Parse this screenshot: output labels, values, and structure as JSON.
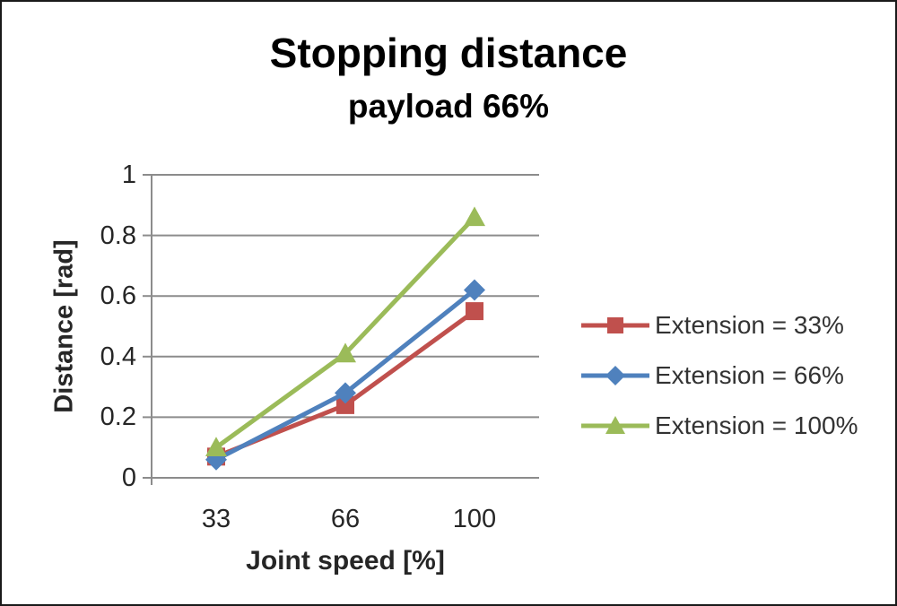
{
  "window": {
    "background": "#ffffff",
    "border_color": "#1a1a1a"
  },
  "chart_data": {
    "type": "line",
    "title": "Stopping distance",
    "subtitle": "payload 66%",
    "xlabel": "Joint speed [%]",
    "ylabel": "Distance [rad]",
    "categories": [
      "33",
      "66",
      "100"
    ],
    "y_ticks": [
      "0",
      "0.2",
      "0.4",
      "0.6",
      "0.8",
      "1"
    ],
    "ylim": [
      0,
      1
    ],
    "grid": true,
    "legend_position": "right",
    "series": [
      {
        "name": "Extension = 33%",
        "color": "#C0504D",
        "marker": "square",
        "values": [
          0.07,
          0.24,
          0.55
        ]
      },
      {
        "name": "Extension = 66%",
        "color": "#4F81BD",
        "marker": "diamond",
        "values": [
          0.06,
          0.28,
          0.62
        ]
      },
      {
        "name": "Extension = 100%",
        "color": "#9BBB59",
        "marker": "triangle",
        "values": [
          0.1,
          0.41,
          0.86
        ]
      }
    ]
  },
  "colors": {
    "gridline": "#8c8c8c",
    "axis": "#8c8c8c",
    "tick_text": "#262626",
    "legend_text": "#333333"
  }
}
